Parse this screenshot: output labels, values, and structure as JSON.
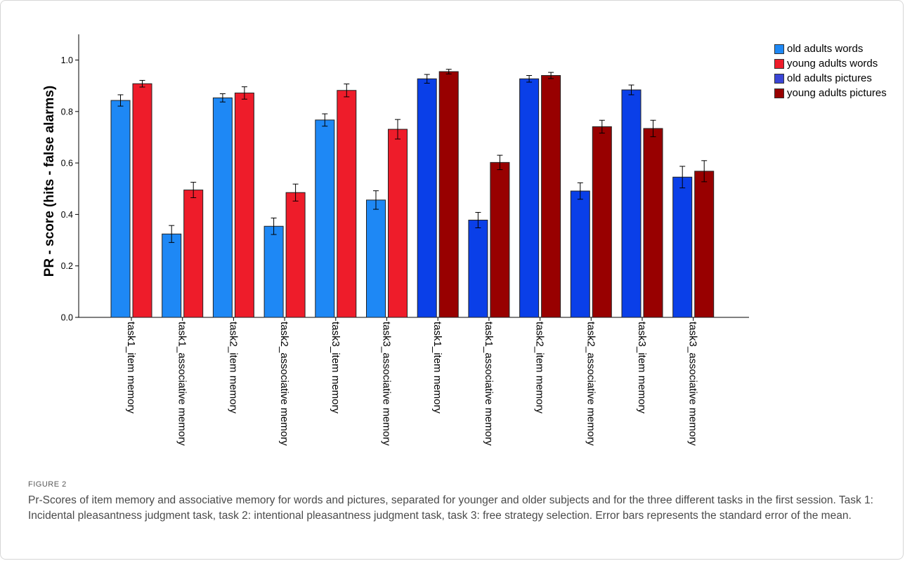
{
  "figure": {
    "label": "FIGURE 2",
    "caption": "Pr-Scores of item memory and associative memory for words and pictures, separated for younger and older subjects and for the three different tasks in the first session. Task 1: Incidental pleasantness judgment task, task 2: intentional pleasantness judgment task, task 3: free strategy selection. Error bars represents the standard error of the mean."
  },
  "chart_data": {
    "type": "bar",
    "title": "",
    "xlabel": "",
    "ylabel": "PR - score (hits - false alarms)",
    "ylim": [
      0,
      1.1
    ],
    "yticks": [
      "0.0",
      "0.2",
      "0.4",
      "0.6",
      "0.8",
      "1.0"
    ],
    "grid": false,
    "legend_position": "top-right",
    "categories": [
      "task1_item memory",
      "task1_associative memory",
      "task2_item memory",
      "task2_associative memory",
      "task3_item memory",
      "task3_associative memory",
      "task1_item memory",
      "task1_associative memory",
      "task2_item memory",
      "task2_associative memory",
      "task3_item memory",
      "task3_associative memory"
    ],
    "legend": [
      {
        "name": "old adults words",
        "color": "#1E88F5"
      },
      {
        "name": "young adults words",
        "color": "#EE1C2A"
      },
      {
        "name": "old adults pictures",
        "color": "#3A45D6"
      },
      {
        "name": "young adults pictures",
        "color": "#980000"
      }
    ],
    "bars": [
      {
        "category_index": 0,
        "legend_index": 0,
        "value": 0.843,
        "error": 0.022,
        "color": "#1E88F5"
      },
      {
        "category_index": 0,
        "legend_index": 1,
        "value": 0.908,
        "error": 0.013,
        "color": "#EE1C2A"
      },
      {
        "category_index": 1,
        "legend_index": 0,
        "value": 0.324,
        "error": 0.033,
        "color": "#1E88F5"
      },
      {
        "category_index": 1,
        "legend_index": 1,
        "value": 0.495,
        "error": 0.03,
        "color": "#EE1C2A"
      },
      {
        "category_index": 2,
        "legend_index": 0,
        "value": 0.853,
        "error": 0.016,
        "color": "#1E88F5"
      },
      {
        "category_index": 2,
        "legend_index": 1,
        "value": 0.872,
        "error": 0.024,
        "color": "#EE1C2A"
      },
      {
        "category_index": 3,
        "legend_index": 0,
        "value": 0.354,
        "error": 0.032,
        "color": "#1E88F5"
      },
      {
        "category_index": 3,
        "legend_index": 1,
        "value": 0.485,
        "error": 0.033,
        "color": "#EE1C2A"
      },
      {
        "category_index": 4,
        "legend_index": 0,
        "value": 0.767,
        "error": 0.024,
        "color": "#1E88F5"
      },
      {
        "category_index": 4,
        "legend_index": 1,
        "value": 0.882,
        "error": 0.025,
        "color": "#EE1C2A"
      },
      {
        "category_index": 5,
        "legend_index": 0,
        "value": 0.456,
        "error": 0.036,
        "color": "#1E88F5"
      },
      {
        "category_index": 5,
        "legend_index": 1,
        "value": 0.731,
        "error": 0.038,
        "color": "#EE1C2A"
      },
      {
        "category_index": 6,
        "legend_index": 2,
        "value": 0.927,
        "error": 0.017,
        "color": "#0A3FE8"
      },
      {
        "category_index": 6,
        "legend_index": 3,
        "value": 0.955,
        "error": 0.009,
        "color": "#980000"
      },
      {
        "category_index": 7,
        "legend_index": 2,
        "value": 0.378,
        "error": 0.03,
        "color": "#0A3FE8"
      },
      {
        "category_index": 7,
        "legend_index": 3,
        "value": 0.602,
        "error": 0.028,
        "color": "#980000"
      },
      {
        "category_index": 8,
        "legend_index": 2,
        "value": 0.927,
        "error": 0.013,
        "color": "#0A3FE8"
      },
      {
        "category_index": 8,
        "legend_index": 3,
        "value": 0.94,
        "error": 0.012,
        "color": "#980000"
      },
      {
        "category_index": 9,
        "legend_index": 2,
        "value": 0.491,
        "error": 0.032,
        "color": "#0A3FE8"
      },
      {
        "category_index": 9,
        "legend_index": 3,
        "value": 0.741,
        "error": 0.025,
        "color": "#980000"
      },
      {
        "category_index": 10,
        "legend_index": 2,
        "value": 0.884,
        "error": 0.019,
        "color": "#0A3FE8"
      },
      {
        "category_index": 10,
        "legend_index": 3,
        "value": 0.734,
        "error": 0.032,
        "color": "#980000"
      },
      {
        "category_index": 11,
        "legend_index": 2,
        "value": 0.545,
        "error": 0.042,
        "color": "#0A3FE8"
      },
      {
        "category_index": 11,
        "legend_index": 3,
        "value": 0.568,
        "error": 0.041,
        "color": "#980000"
      }
    ]
  }
}
